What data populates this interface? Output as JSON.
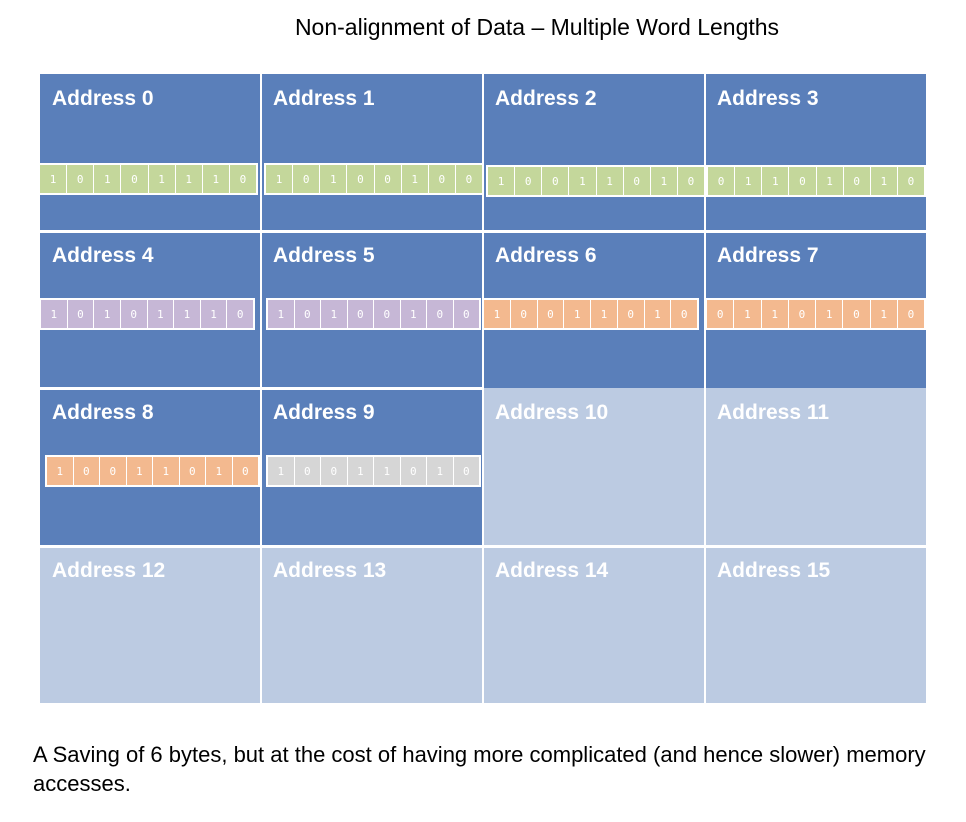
{
  "title": "Non-alignment of Data – Multiple Word Lengths",
  "addresses": [
    {
      "label": "Address 0",
      "used": true
    },
    {
      "label": "Address 1",
      "used": true
    },
    {
      "label": "Address 2",
      "used": true
    },
    {
      "label": "Address 3",
      "used": true
    },
    {
      "label": "Address 4",
      "used": true
    },
    {
      "label": "Address 5",
      "used": true
    },
    {
      "label": "Address 6",
      "used": true
    },
    {
      "label": "Address 7",
      "used": true
    },
    {
      "label": "Address 8",
      "used": true
    },
    {
      "label": "Address 9",
      "used": true
    },
    {
      "label": "Address 10",
      "used": false
    },
    {
      "label": "Address 11",
      "used": false
    },
    {
      "label": "Address 12",
      "used": false
    },
    {
      "label": "Address 13",
      "used": false
    },
    {
      "label": "Address 14",
      "used": false
    },
    {
      "label": "Address 15",
      "used": false
    }
  ],
  "bytes": [
    {
      "address": 0,
      "bits": [
        "1",
        "0",
        "1",
        "0",
        "1",
        "1",
        "1",
        "0"
      ],
      "color": "#c4d79b"
    },
    {
      "address": 1,
      "bits": [
        "1",
        "0",
        "1",
        "0",
        "0",
        "1",
        "0",
        "0"
      ],
      "color": "#c4d79b"
    },
    {
      "address": 2,
      "bits": [
        "1",
        "0",
        "0",
        "1",
        "1",
        "0",
        "1",
        "0"
      ],
      "color": "#c4d79b"
    },
    {
      "address": 3,
      "bits": [
        "0",
        "1",
        "1",
        "0",
        "1",
        "0",
        "1",
        "0"
      ],
      "color": "#c4d79b"
    },
    {
      "address": 4,
      "bits": [
        "1",
        "0",
        "1",
        "0",
        "1",
        "1",
        "1",
        "0"
      ],
      "color": "#c6b7d6"
    },
    {
      "address": 5,
      "bits": [
        "1",
        "0",
        "1",
        "0",
        "0",
        "1",
        "0",
        "0"
      ],
      "color": "#c6b7d6"
    },
    {
      "address": 6,
      "bits": [
        "1",
        "0",
        "0",
        "1",
        "1",
        "0",
        "1",
        "0"
      ],
      "color": "#f3b98f"
    },
    {
      "address": 7,
      "bits": [
        "0",
        "1",
        "1",
        "0",
        "1",
        "0",
        "1",
        "0"
      ],
      "color": "#f3b98f"
    },
    {
      "address": 8,
      "bits": [
        "1",
        "0",
        "0",
        "1",
        "1",
        "0",
        "1",
        "0"
      ],
      "color": "#f3b98f"
    },
    {
      "address": 9,
      "bits": [
        "1",
        "0",
        "0",
        "1",
        "1",
        "0",
        "1",
        "0"
      ],
      "color": "#d6d6d6"
    }
  ],
  "caption": "A Saving of 6 bytes, but at the cost of having more complicated (and hence slower) memory accesses."
}
